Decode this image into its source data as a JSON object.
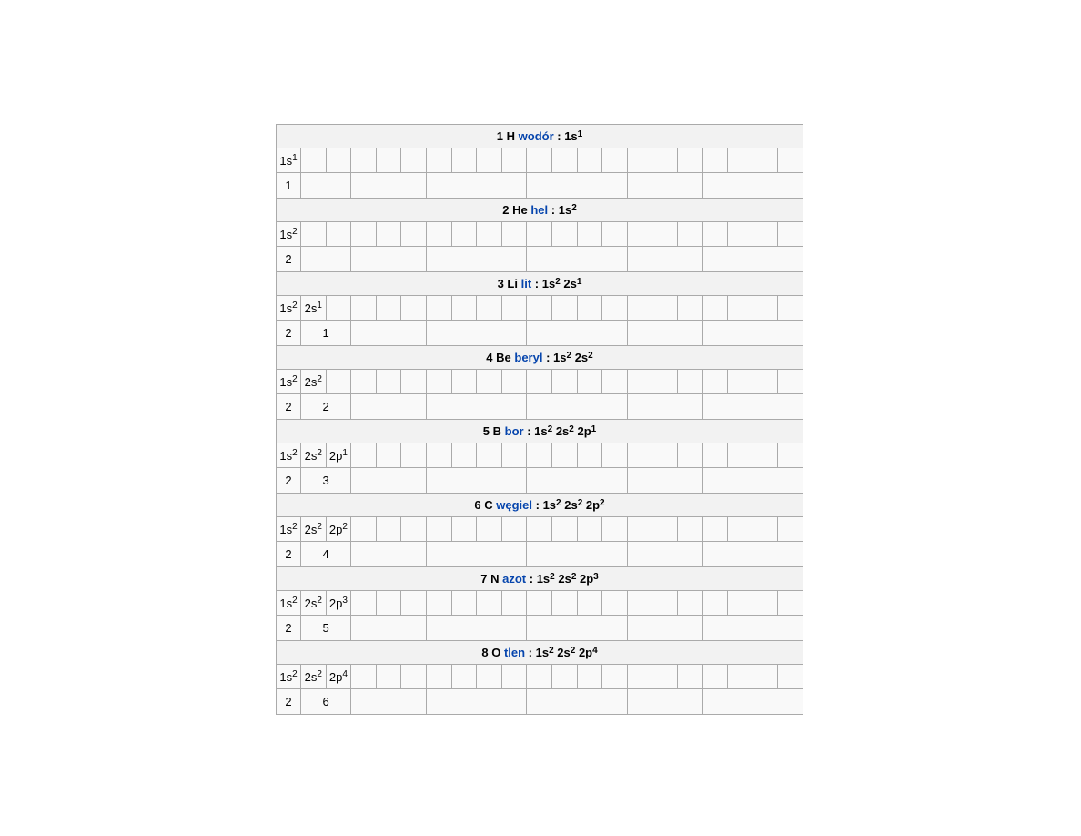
{
  "colors": {
    "page_bg": "#ffffff",
    "table_bg": "#f9f9f9",
    "header_bg": "#f2f2f2",
    "border": "#aaaaaa",
    "link_blue": "#0645ad",
    "text": "#000000"
  },
  "layout": {
    "orbital_columns": 21,
    "shell_group_colspans": [
      1,
      2,
      3,
      4,
      4,
      3,
      2,
      2
    ]
  },
  "header_separator": " : ",
  "elements": [
    {
      "number": "1",
      "symbol": "H",
      "name": "wodór",
      "config": [
        [
          "1s",
          "1"
        ]
      ],
      "shells": [
        "1"
      ]
    },
    {
      "number": "2",
      "symbol": "He",
      "name": "hel",
      "config": [
        [
          "1s",
          "2"
        ]
      ],
      "shells": [
        "2"
      ]
    },
    {
      "number": "3",
      "symbol": "Li",
      "name": "lit",
      "config": [
        [
          "1s",
          "2"
        ],
        [
          "2s",
          "1"
        ]
      ],
      "shells": [
        "2",
        "1"
      ]
    },
    {
      "number": "4",
      "symbol": "Be",
      "name": "beryl",
      "config": [
        [
          "1s",
          "2"
        ],
        [
          "2s",
          "2"
        ]
      ],
      "shells": [
        "2",
        "2"
      ]
    },
    {
      "number": "5",
      "symbol": "B",
      "name": "bor",
      "config": [
        [
          "1s",
          "2"
        ],
        [
          "2s",
          "2"
        ],
        [
          "2p",
          "1"
        ]
      ],
      "shells": [
        "2",
        "3"
      ]
    },
    {
      "number": "6",
      "symbol": "C",
      "name": "węgiel",
      "config": [
        [
          "1s",
          "2"
        ],
        [
          "2s",
          "2"
        ],
        [
          "2p",
          "2"
        ]
      ],
      "shells": [
        "2",
        "4"
      ]
    },
    {
      "number": "7",
      "symbol": "N",
      "name": "azot",
      "config": [
        [
          "1s",
          "2"
        ],
        [
          "2s",
          "2"
        ],
        [
          "2p",
          "3"
        ]
      ],
      "shells": [
        "2",
        "5"
      ]
    },
    {
      "number": "8",
      "symbol": "O",
      "name": "tlen",
      "config": [
        [
          "1s",
          "2"
        ],
        [
          "2s",
          "2"
        ],
        [
          "2p",
          "4"
        ]
      ],
      "shells": [
        "2",
        "6"
      ]
    }
  ]
}
